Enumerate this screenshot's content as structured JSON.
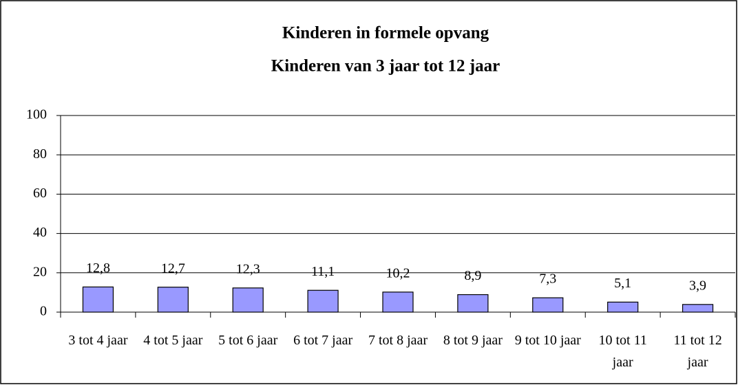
{
  "chart_data": {
    "type": "bar",
    "title": "Kinderen in formele opvang",
    "subtitle": "Kinderen van 3 jaar tot 12 jaar",
    "categories": [
      "3 tot 4 jaar",
      "4 tot 5 jaar",
      "5 tot 6 jaar",
      "6 tot 7 jaar",
      "7 tot 8 jaar",
      "8 tot 9 jaar",
      "9 tot 10 jaar",
      "10 tot 11 jaar",
      "11 tot 12 jaar"
    ],
    "values": [
      12.8,
      12.7,
      12.3,
      11.1,
      10.2,
      8.9,
      7.3,
      5.1,
      3.9
    ],
    "value_labels": [
      "12,8",
      "12,7",
      "12,3",
      "11,1",
      "10,2",
      "8,9",
      "7,3",
      "5,1",
      "3,9"
    ],
    "color": "#9999ff",
    "ylim": [
      0,
      100
    ],
    "yticks": [
      0,
      20,
      40,
      60,
      80,
      100
    ],
    "grid": true
  }
}
